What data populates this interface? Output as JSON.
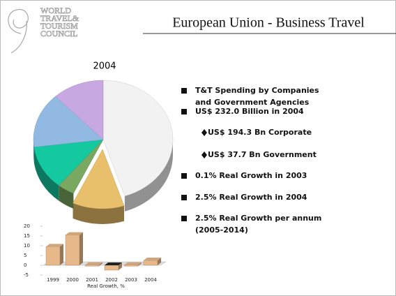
{
  "header": {
    "logo": [
      "WORLD",
      "TRAVEL&",
      "TOURISM",
      "COUNCIL"
    ],
    "title": "European Union - Business Travel"
  },
  "bullets": [
    {
      "level": 1,
      "text": [
        "T&T Spending by Companies",
        "and Government Agencies"
      ]
    },
    {
      "level": 1,
      "text": [
        "US$ 232.0 Billion in 2004"
      ]
    },
    {
      "level": 2,
      "text": [
        "US$ 194.3  Bn Corporate"
      ]
    },
    {
      "level": 2,
      "text": [
        "US$ 37.7  Bn Government"
      ]
    },
    {
      "level": 1,
      "text": [
        "0.1% Real Growth in 2003"
      ]
    },
    {
      "level": 1,
      "text": [
        "2.5% Real Growth in 2004"
      ]
    },
    {
      "level": 1,
      "text": [
        "2.5% Real Growth per annum",
        "(2005-2014)"
      ]
    }
  ],
  "chart_data": [
    {
      "type": "pie",
      "title": "2004",
      "values": [
        45,
        12,
        4,
        12,
        15,
        12
      ],
      "colors": [
        "#f2f2f2",
        "#e8bf6a",
        "#7aa860",
        "#14c9a0",
        "#92b9e2",
        "#c8a8e0"
      ],
      "exploded": [
        1
      ]
    },
    {
      "type": "bar",
      "xlabel": "Real Growth, %",
      "categories": [
        "1999",
        "2000",
        "2001",
        "2002",
        "2003",
        "2004"
      ],
      "values": [
        9.5,
        15.5,
        0.1,
        -2.5,
        0.1,
        2.5
      ],
      "color": "#e6b88a",
      "ylim": [
        -5,
        20
      ],
      "yticks": [
        -5,
        0,
        5,
        10,
        15,
        20
      ]
    }
  ]
}
